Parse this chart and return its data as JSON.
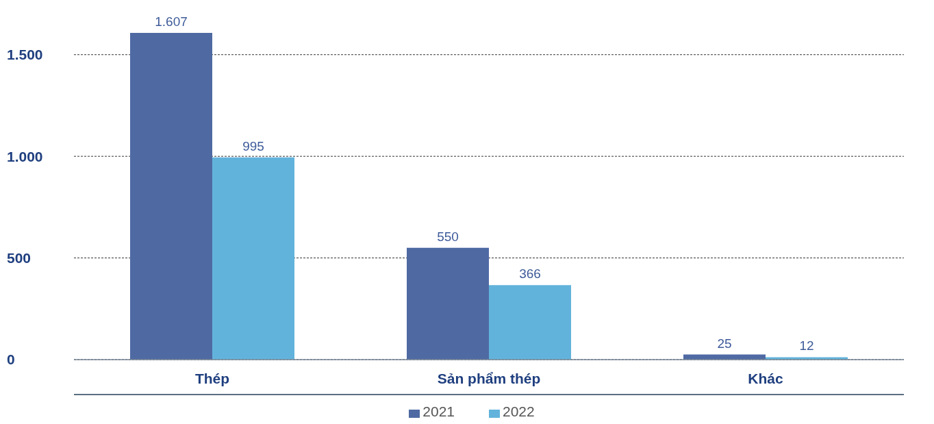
{
  "chart_data": {
    "type": "bar",
    "categories": [
      "Thép",
      "Sản phẩm thép",
      "Khác"
    ],
    "series": [
      {
        "name": "2021",
        "color": "#4f6aa3",
        "values": [
          1607,
          550,
          25
        ],
        "value_labels": [
          "1.607",
          "550",
          "25"
        ]
      },
      {
        "name": "2022",
        "color": "#62b3dc",
        "values": [
          995,
          366,
          12
        ],
        "value_labels": [
          "995",
          "366",
          "12"
        ]
      }
    ],
    "ylim": [
      0,
      1607
    ],
    "yticks": [
      0,
      500,
      {
        "value": 1000,
        "label": "1.000"
      },
      {
        "value": 1500,
        "label": "1.500"
      }
    ],
    "grid": "y",
    "legend": "bottom"
  }
}
